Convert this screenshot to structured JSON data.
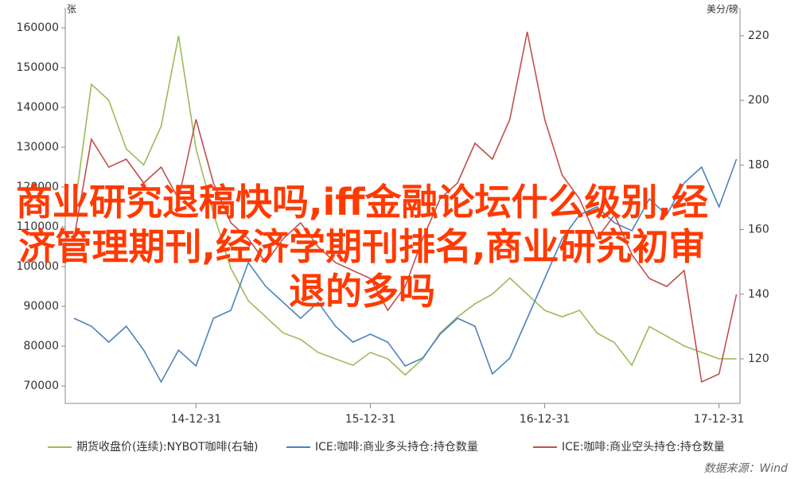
{
  "chart_data": {
    "type": "line",
    "overlay_text": "商业研究退稿快吗,iff金融论坛什么级别,经济管理期刊,经济学期刊排名,商业研究初审退的多吗",
    "y_label": "张",
    "y2_label": "美分/磅",
    "source": "数据来源：Wind",
    "x": [
      2014.3,
      2014.4,
      2014.5,
      2014.6,
      2014.7,
      2014.8,
      2014.9,
      2015.0,
      2015.1,
      2015.2,
      2015.3,
      2015.4,
      2015.5,
      2015.6,
      2015.7,
      2015.8,
      2015.9,
      2016.0,
      2016.1,
      2016.2,
      2016.3,
      2016.4,
      2016.5,
      2016.6,
      2016.7,
      2016.8,
      2016.9,
      2017.0,
      2017.1,
      2017.2,
      2017.3,
      2017.4,
      2017.5,
      2017.6,
      2017.7,
      2017.8,
      2017.9,
      2018.0,
      2018.1
    ],
    "xlim": [
      2014.25,
      2018.12
    ],
    "xticks": [
      {
        "value": 2015.0,
        "label": "14-12-31"
      },
      {
        "value": 2016.0,
        "label": "15-12-31"
      },
      {
        "value": 2017.0,
        "label": "16-12-31"
      },
      {
        "value": 2018.0,
        "label": "17-12-31"
      }
    ],
    "ylim": [
      65600,
      165000
    ],
    "yticks": [
      70000,
      80000,
      90000,
      100000,
      110000,
      120000,
      130000,
      140000,
      150000,
      160000
    ],
    "y2lim": [
      106.2,
      228.6
    ],
    "y2ticks": [
      120,
      140,
      160,
      180,
      200,
      220
    ],
    "series": [
      {
        "name": "期货收盘价(连续):NYBOT咖啡(右轴)",
        "color": "#9bbb59",
        "axis": "y2",
        "values": [
          165,
          205,
          200,
          185,
          180,
          192,
          220,
          185,
          165,
          148,
          138,
          133,
          128,
          126,
          122,
          120,
          118,
          122,
          120,
          115,
          120,
          128,
          133,
          137,
          140,
          145,
          140,
          135,
          133,
          135,
          128,
          125,
          118,
          130,
          127,
          124,
          122,
          120,
          120
        ]
      },
      {
        "name": "ICE:咖啡:商业多头持仓:持仓数量",
        "color": "#4f81bd",
        "values": [
          87000,
          85000,
          81000,
          85000,
          79000,
          71000,
          79000,
          75000,
          87000,
          89000,
          101000,
          95000,
          91000,
          87000,
          91000,
          85000,
          81000,
          83000,
          81000,
          75000,
          77000,
          83000,
          87000,
          85000,
          73000,
          77000,
          87000,
          97000,
          107000,
          113000,
          115000,
          111000,
          109000,
          117000,
          113000,
          121000,
          125000,
          115000,
          127000
        ]
      },
      {
        "name": "ICE:咖啡:商业空头持仓:持仓数量",
        "color": "#c0504d",
        "values": [
          107000,
          132000,
          125000,
          127000,
          121000,
          125000,
          117000,
          137000,
          121000,
          111000,
          107000,
          101000,
          107000,
          111000,
          105000,
          101000,
          99000,
          97000,
          89000,
          95000,
          107000,
          117000,
          121000,
          131000,
          127000,
          137000,
          159000,
          137000,
          123000,
          117000,
          107000,
          113000,
          103000,
          97000,
          95000,
          99000,
          71000,
          73000,
          93000
        ]
      }
    ]
  }
}
